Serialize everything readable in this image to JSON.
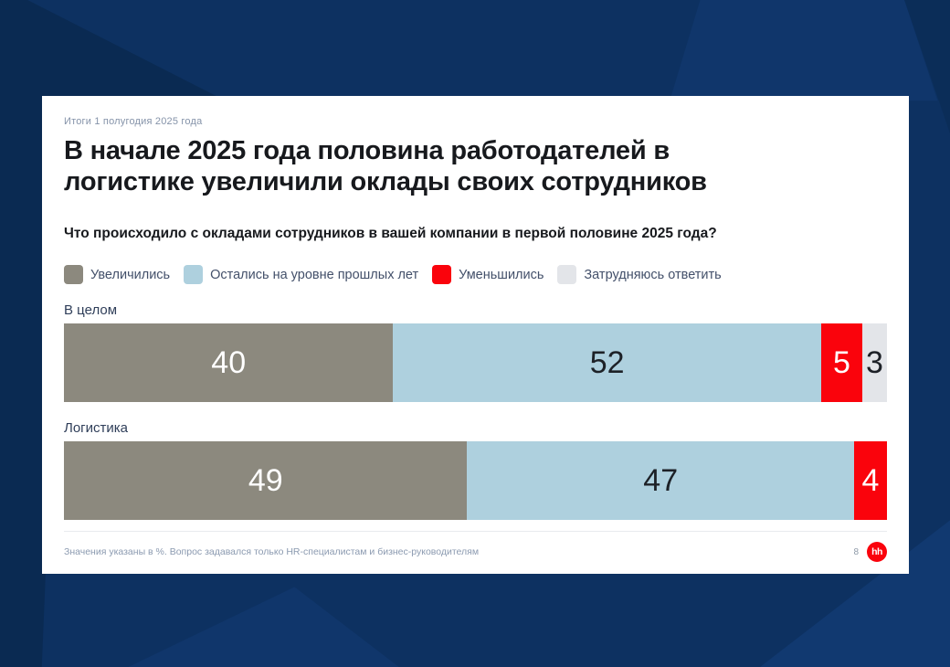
{
  "header": {
    "kicker": "Итоги 1 полугодия 2025 года",
    "title": "В начале 2025 года половина работодателей в логистике увеличили оклады своих сотрудников",
    "title_lines": [
      "В начале 2025 года половина работодателей в",
      "логистике увеличили оклады своих сотрудников"
    ],
    "question": "Что происходило с окладами сотрудников в вашей компании в первой половине 2025 года?"
  },
  "chart_data": {
    "type": "bar",
    "orientation": "horizontal",
    "stacked": true,
    "unit": "%",
    "axis": "none",
    "grid": false,
    "legend_position": "top",
    "value_labels": "inside",
    "categories": [
      "В целом",
      "Логистика"
    ],
    "series": [
      {
        "name": "Увеличились",
        "color": "#8C897E",
        "text_color": "#FFFFFF",
        "values": [
          40,
          49
        ]
      },
      {
        "name": "Остались на уровне прошлых лет",
        "color": "#AED0DE",
        "text_color": "#1D2127",
        "values": [
          52,
          47
        ]
      },
      {
        "name": "Уменьшились",
        "color": "#FA030C",
        "text_color": "#FFFFFF",
        "values": [
          5,
          4
        ]
      },
      {
        "name": "Затрудняюсь ответить",
        "color": "#E3E5E9",
        "text_color": "#1D2127",
        "values": [
          3,
          0
        ]
      }
    ]
  },
  "footer": {
    "footnote": "Значения указаны в %. Вопрос задавался только HR-специалистам и бизнес-руководителям",
    "page_number": "8",
    "logo_text": "hh"
  },
  "colors": {
    "background": "#0D3161",
    "background_dark": "#0A2A52",
    "background_light": "#10366B",
    "card": "#FFFFFF",
    "accent_red": "#FA030C"
  }
}
